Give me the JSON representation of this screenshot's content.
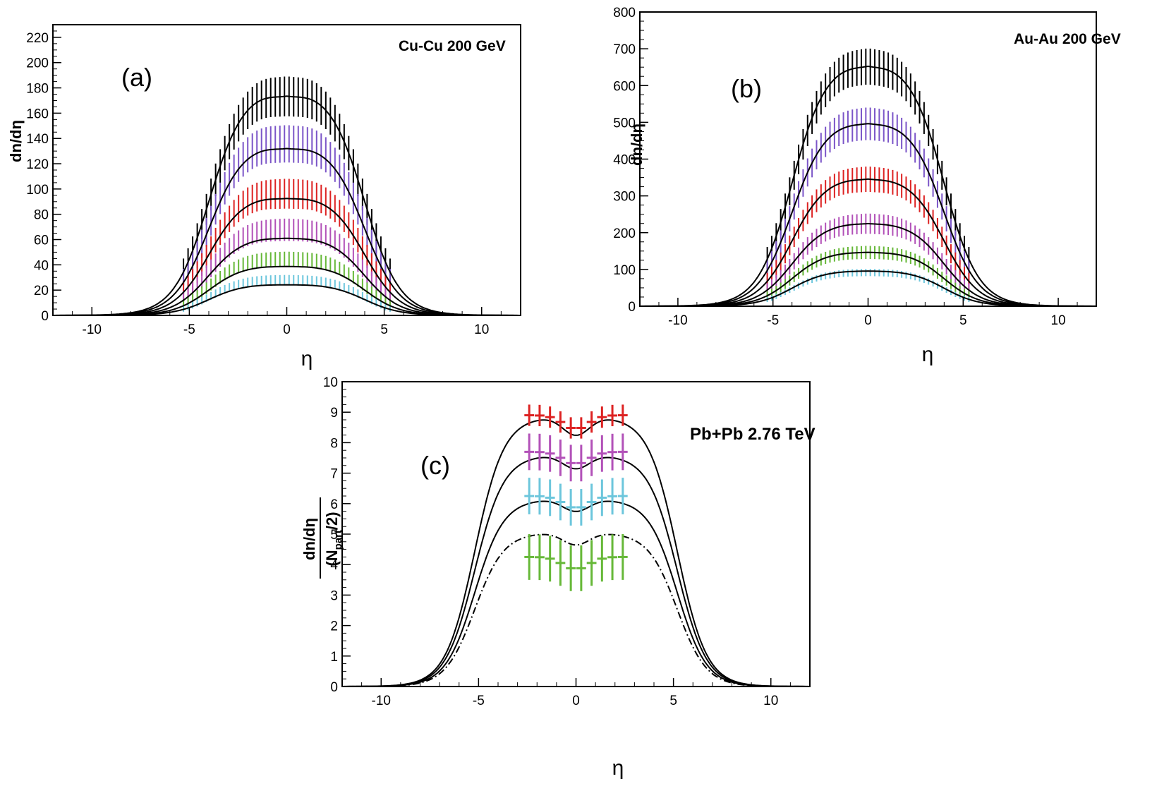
{
  "figure": {
    "layout": "two charts on top row, one chart centered on bottom row"
  },
  "chart_data": [
    {
      "id": "a",
      "type": "line",
      "panel_label": "(a)",
      "annotation": "Cu-Cu 200 GeV",
      "xlabel": "η",
      "ylabel": "dn/dη",
      "xlim": [
        -12,
        12
      ],
      "ylim": [
        0,
        230
      ],
      "xticks": [
        -10,
        -5,
        0,
        5,
        10
      ],
      "yticks": [
        0,
        20,
        40,
        60,
        80,
        100,
        120,
        140,
        160,
        180,
        200,
        220
      ],
      "error_bar_eta_range": [
        -5.3,
        5.3
      ],
      "series": [
        {
          "name": "black",
          "color": "#000000",
          "plateau": 180,
          "dip": 0.025,
          "data_offset": 0,
          "error": 16
        },
        {
          "name": "purple",
          "color": "#7b55c8",
          "plateau": 137,
          "dip": 0.025,
          "data_offset": 4,
          "error": 15
        },
        {
          "name": "red",
          "color": "#dd2222",
          "plateau": 96,
          "dip": 0.025,
          "data_offset": 4,
          "error": 12
        },
        {
          "name": "magenta",
          "color": "#b251b8",
          "plateau": 63,
          "dip": 0.02,
          "data_offset": 7,
          "error": 9
        },
        {
          "name": "green",
          "color": "#66b838",
          "plateau": 40,
          "dip": 0.02,
          "data_offset": 6,
          "error": 6
        },
        {
          "name": "cyan",
          "color": "#6cc6dc",
          "plateau": 25,
          "dip": 0.02,
          "data_offset": 4,
          "error": 4
        }
      ]
    },
    {
      "id": "b",
      "type": "line",
      "panel_label": "(b)",
      "annotation": "Au-Au 200 GeV",
      "xlabel": "η",
      "ylabel": "dn/dη",
      "xlim": [
        -12,
        12
      ],
      "ylim": [
        0,
        800
      ],
      "xticks": [
        -10,
        -5,
        0,
        5,
        10
      ],
      "yticks": [
        0,
        100,
        200,
        300,
        400,
        500,
        600,
        700,
        800
      ],
      "error_bar_eta_range": [
        -5.3,
        5.3
      ],
      "series": [
        {
          "name": "black",
          "color": "#000000",
          "plateau": 670,
          "dip": 0.015,
          "data_offset": 0,
          "error": 50
        },
        {
          "name": "purple",
          "color": "#7b55c8",
          "plateau": 510,
          "dip": 0.015,
          "data_offset": 0,
          "error": 45
        },
        {
          "name": "red",
          "color": "#dd2222",
          "plateau": 355,
          "dip": 0.015,
          "data_offset": 0,
          "error": 35
        },
        {
          "name": "magenta",
          "color": "#b251b8",
          "plateau": 230,
          "dip": 0.012,
          "data_offset": 0,
          "error": 28
        },
        {
          "name": "green",
          "color": "#66b838",
          "plateau": 150,
          "dip": 0.012,
          "data_offset": 0,
          "error": 18
        },
        {
          "name": "cyan",
          "color": "#6cc6dc",
          "plateau": 98,
          "dip": 0.012,
          "data_offset": -4,
          "error": 10
        }
      ]
    },
    {
      "id": "c",
      "type": "line",
      "panel_label": "(c)",
      "annotation": "Pb+Pb 2.76 TeV",
      "xlabel": "η",
      "ylabel": "dn/dη / (N_part/2)",
      "ylabel_numerator": "dn/dη",
      "ylabel_denominator_prefix": "(N",
      "ylabel_denominator_sub": "part",
      "ylabel_denominator_suffix": "/2)",
      "xlim": [
        -12,
        12
      ],
      "ylim": [
        0,
        10
      ],
      "xticks": [
        -10,
        -5,
        0,
        5,
        10
      ],
      "yticks": [
        0,
        1,
        2,
        3,
        4,
        5,
        6,
        7,
        8,
        9,
        10
      ],
      "error_bar_eta_range": [
        -2.4,
        2.4
      ],
      "series": [
        {
          "name": "red",
          "color": "#dd2222",
          "curve_peak": 8.85,
          "curve_center": 8.25,
          "data_peak": 8.9,
          "data_center": 8.45,
          "error": 0.35
        },
        {
          "name": "magenta",
          "color": "#b251b8",
          "curve_peak": 7.6,
          "curve_center": 7.15,
          "data_peak": 7.7,
          "data_center": 7.3,
          "error": 0.6
        },
        {
          "name": "cyan",
          "color": "#6cc6dc",
          "curve_peak": 6.15,
          "curve_center": 5.75,
          "data_peak": 6.25,
          "data_center": 5.85,
          "error": 0.6
        },
        {
          "name": "green",
          "color": "#66b838",
          "curve_peak": 5.05,
          "curve_center": 4.65,
          "data_peak": 4.25,
          "data_center": 3.85,
          "error": 0.75,
          "dashed_curve": true
        }
      ]
    }
  ]
}
